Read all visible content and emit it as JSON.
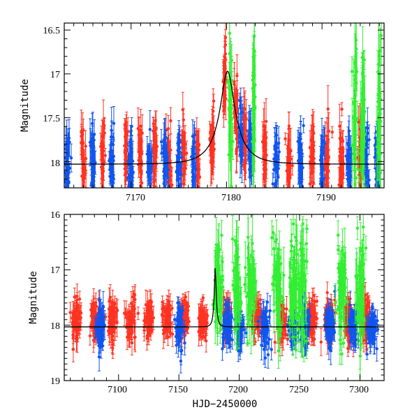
{
  "chart_data": [
    {
      "id": "top",
      "type": "scatter",
      "title": "",
      "xlabel": "",
      "ylabel": "Magnitude",
      "xlim": [
        7163,
        7196.5
      ],
      "ylim": [
        18.3,
        16.42
      ],
      "y_inverted": true,
      "x_ticks": [
        7170,
        7180,
        7190
      ],
      "x_tick_labels": [
        "7170",
        "7180",
        "7190"
      ],
      "y_ticks": [
        16.5,
        17,
        17.5,
        18
      ],
      "y_tick_labels": [
        "16.5",
        "17",
        "17.5",
        "18"
      ],
      "model_curve": {
        "name": "model",
        "color": "#000000",
        "baseline": 18.03,
        "peak": 16.97,
        "t0": 7180.1,
        "u0": 0.3,
        "tE": 2.5
      },
      "series": [
        {
          "name": "red",
          "color": "#ff3322",
          "x_range": [
            7163,
            7196
          ],
          "typical_mag": 17.95,
          "clusters": [
            7165,
            7167,
            7169.5,
            7171,
            7172.5,
            7174,
            7175.5,
            7177,
            7178.5,
            7179.8,
            7181,
            7181.9,
            7184,
            7186.5,
            7189,
            7190.5,
            7192,
            7194
          ]
        },
        {
          "name": "blue",
          "color": "#1155ee",
          "x_range": [
            7163,
            7196.5
          ],
          "typical_mag": 18.0,
          "clusters": [
            7163.3,
            7166,
            7168,
            7170,
            7172,
            7173.5,
            7175,
            7176.5,
            7181.5,
            7182.5,
            7185.2,
            7187.8,
            7190,
            7192.8,
            7194.6,
            7195.8
          ]
        },
        {
          "name": "green",
          "color": "#33ee33",
          "x_range": [
            7180,
            7196.5
          ],
          "typical_mag": 17.4,
          "clusters": [
            7180.4,
            7182.8,
            7193.5,
            7194.3,
            7196
          ]
        }
      ]
    },
    {
      "id": "bottom",
      "type": "scatter",
      "title": "",
      "xlabel": "HJD−2450000",
      "ylabel": "Magnitude",
      "xlim": [
        7055,
        7320
      ],
      "ylim": [
        19,
        16
      ],
      "y_inverted": true,
      "x_ticks": [
        7100,
        7150,
        7200,
        7250,
        7300
      ],
      "x_tick_labels": [
        "7100",
        "7150",
        "7200",
        "7250",
        "7300"
      ],
      "y_ticks": [
        16,
        17,
        18,
        19
      ],
      "y_tick_labels": [
        "16",
        "17",
        "18",
        "19"
      ],
      "model_curve": {
        "name": "model",
        "color": "#000000",
        "baseline": 18.03,
        "peak": 16.97,
        "t0": 7180.1,
        "u0": 0.3,
        "tE": 2.5
      },
      "series": [
        {
          "name": "red",
          "color": "#ff3322",
          "x_range": [
            7060,
            7315
          ],
          "typical_mag": 17.9,
          "clusters": [
            7065,
            7080,
            7095,
            7110,
            7125,
            7140,
            7155,
            7170,
            7190,
            7215,
            7235,
            7260,
            7275,
            7290,
            7305
          ]
        },
        {
          "name": "blue",
          "color": "#1155ee",
          "x_range": [
            7080,
            7315
          ],
          "typical_mag": 18.1,
          "clusters": [
            7085,
            7150,
            7190,
            7200,
            7222,
            7245,
            7255,
            7275,
            7295,
            7310
          ]
        },
        {
          "name": "green",
          "color": "#33ee33",
          "x_range": [
            7180,
            7320
          ],
          "typical_mag": 17.3,
          "clusters": [
            7183,
            7198,
            7210,
            7232,
            7245,
            7252,
            7285,
            7300
          ]
        }
      ]
    }
  ]
}
